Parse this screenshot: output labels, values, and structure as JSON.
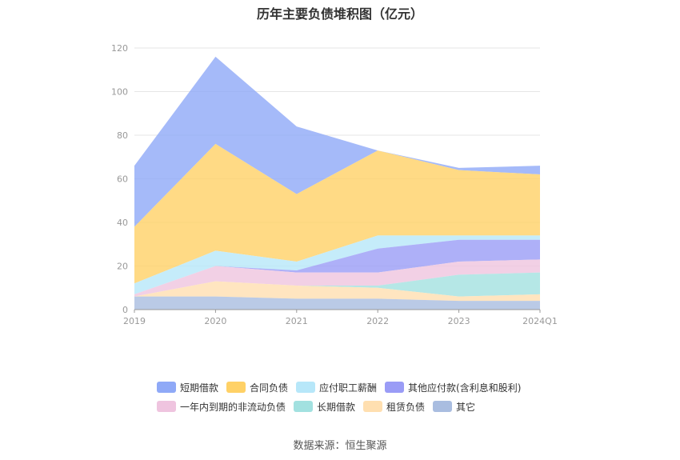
{
  "chart_data": {
    "type": "area",
    "title": "历年主要负债堆积图（亿元）",
    "source": "数据来源：恒生聚源",
    "categories": [
      "2019",
      "2020",
      "2021",
      "2022",
      "2023",
      "2024Q1"
    ],
    "y_ticks": [
      "0",
      "20",
      "40",
      "60",
      "80",
      "100",
      "120"
    ],
    "ylim": [
      0,
      120
    ],
    "stacked": true,
    "grid": true,
    "legend_position": "bottom",
    "series": [
      {
        "name": "短期借款",
        "color": "#8fa9f7",
        "values": [
          28,
          40,
          31,
          0,
          1,
          4
        ]
      },
      {
        "name": "合同负债",
        "color": "#ffd166",
        "values": [
          26,
          49,
          31,
          39,
          30,
          28
        ]
      },
      {
        "name": "应付职工薪酬",
        "color": "#b7e7f9",
        "values": [
          5,
          7,
          4,
          6,
          2,
          2
        ]
      },
      {
        "name": "其他应付款(含利息和股利)",
        "color": "#9a9cf6",
        "values": [
          0,
          0,
          1,
          11,
          10,
          9
        ]
      },
      {
        "name": "一年内到期的非流动负债",
        "color": "#efc4df",
        "values": [
          1,
          7,
          6,
          6,
          6,
          6
        ]
      },
      {
        "name": "长期借款",
        "color": "#a2e1e0",
        "values": [
          0,
          0,
          0,
          1,
          10,
          10
        ]
      },
      {
        "name": "租赁负债",
        "color": "#ffdfb0",
        "values": [
          0,
          7,
          6,
          5,
          2,
          3
        ]
      },
      {
        "name": "其它",
        "color": "#a9bde0",
        "values": [
          6,
          6,
          5,
          5,
          4,
          4
        ]
      }
    ]
  }
}
